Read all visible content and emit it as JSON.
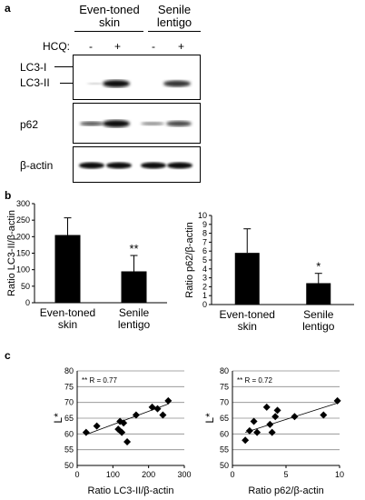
{
  "panels": {
    "a": {
      "letter": "a",
      "groups": [
        "Even-toned skin",
        "Senile lentigo"
      ],
      "group_lines": [
        [
          "Even-toned",
          "skin"
        ],
        [
          "Senile",
          "lentigo"
        ]
      ],
      "treatment_label": "HCQ:",
      "treatment_signs": [
        "-",
        "+",
        "-",
        "+"
      ],
      "blots": [
        {
          "labels": [
            "LC3-I",
            "LC3-II"
          ]
        },
        {
          "labels": [
            "p62"
          ]
        },
        {
          "labels": [
            "β-actin"
          ]
        }
      ]
    },
    "b": {
      "letter": "b"
    },
    "c": {
      "letter": "c"
    }
  },
  "chart_data": [
    {
      "type": "bar",
      "panel": "b-left",
      "ylabel": "Ratio LC3-II/β-actin",
      "categories": [
        [
          "Even-toned",
          "skin"
        ],
        [
          "Senile",
          "lentigo"
        ]
      ],
      "values": [
        205,
        95
      ],
      "errors": [
        52,
        48
      ],
      "ylim": [
        0,
        300
      ],
      "yticks": [
        0,
        50,
        100,
        150,
        200,
        250,
        300
      ],
      "significance": [
        "",
        "**"
      ],
      "color": "#000000"
    },
    {
      "type": "bar",
      "panel": "b-right",
      "ylabel": "Ratio p62/β-actin",
      "categories": [
        [
          "Even-toned",
          "skin"
        ],
        [
          "Senile",
          "lentigo"
        ]
      ],
      "values": [
        5.8,
        2.4
      ],
      "errors": [
        2.7,
        1.1
      ],
      "ylim": [
        0,
        10
      ],
      "yticks": [
        0,
        1,
        2,
        3,
        4,
        5,
        6,
        7,
        8,
        9,
        10
      ],
      "significance": [
        "",
        "*"
      ],
      "color": "#000000"
    },
    {
      "type": "scatter",
      "panel": "c-left",
      "xlabel": "Ratio LC3-II/β-actin",
      "ylabel": "L*",
      "annotation": "** R = 0.77",
      "xlim": [
        0,
        300
      ],
      "ylim": [
        50,
        80
      ],
      "xticks": [
        0,
        100,
        200,
        300
      ],
      "yticks": [
        50,
        55,
        60,
        65,
        70,
        75,
        80
      ],
      "points": [
        [
          25,
          60.5
        ],
        [
          55,
          62.5
        ],
        [
          115,
          61.5
        ],
        [
          120,
          64
        ],
        [
          125,
          60.5
        ],
        [
          130,
          63.5
        ],
        [
          140,
          57.5
        ],
        [
          165,
          66
        ],
        [
          210,
          68.5
        ],
        [
          225,
          68
        ],
        [
          240,
          66
        ],
        [
          255,
          70.5
        ]
      ],
      "trendline": [
        [
          25,
          59.8
        ],
        [
          255,
          69.5
        ]
      ],
      "marker": "diamond"
    },
    {
      "type": "scatter",
      "panel": "c-right",
      "xlabel": "Ratio p62/β-actin",
      "ylabel": "L*",
      "annotation": "** R = 0.72",
      "xlim": [
        0,
        10
      ],
      "ylim": [
        50,
        80
      ],
      "xticks": [
        0,
        5,
        10
      ],
      "yticks": [
        50,
        55,
        60,
        65,
        70,
        75,
        80
      ],
      "points": [
        [
          1.2,
          58
        ],
        [
          1.6,
          61
        ],
        [
          2.0,
          64
        ],
        [
          2.3,
          60.5
        ],
        [
          3.2,
          68.5
        ],
        [
          3.5,
          63
        ],
        [
          3.7,
          60.5
        ],
        [
          4.0,
          65.5
        ],
        [
          4.2,
          67.5
        ],
        [
          5.8,
          65.5
        ],
        [
          8.5,
          66
        ],
        [
          9.8,
          70.5
        ]
      ],
      "trendline": [
        [
          1.2,
          60.5
        ],
        [
          9.8,
          69.8
        ]
      ],
      "marker": "diamond"
    }
  ]
}
